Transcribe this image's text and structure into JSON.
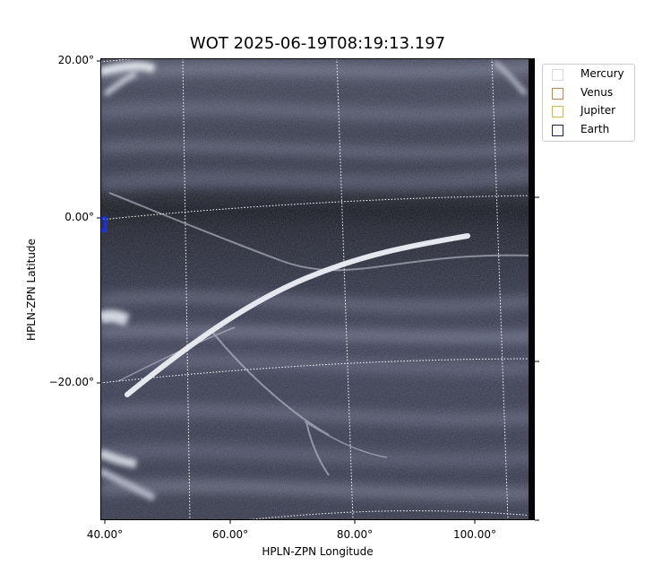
{
  "chart_data": {
    "type": "scatter",
    "title": "WOT 2025-06-19T08:19:13.197",
    "xlabel": "HPLN-ZPN Longitude",
    "ylabel": "HPLN-ZPN Latitude",
    "x_ticks": [
      "40.00°",
      "60.00°",
      "80.00°",
      "100.00°"
    ],
    "y_ticks": [
      "20.00°",
      "0.00°",
      "−20.00°"
    ],
    "xlim": [
      39,
      110
    ],
    "ylim": [
      -36,
      20
    ],
    "grid": true,
    "legend_position": "outside-right",
    "legend": [
      {
        "name": "Mercury",
        "color": "#d9d9d9"
      },
      {
        "name": "Venus",
        "color": "#e07b39"
      },
      {
        "name": "Jupiter",
        "color": "#e8b720"
      },
      {
        "name": "Earth",
        "color": "#1a1a8c"
      }
    ],
    "series": [
      {
        "name": "Earth",
        "marker": "blue-square",
        "points": [
          {
            "x": 39,
            "y": -1.5
          }
        ]
      }
    ],
    "background": "grayscale coronagraph image (heliospheric streamers)"
  },
  "colors": {
    "image_base": "#2e3246",
    "streak": "#e8ecf4",
    "earth_marker": "#1030ff"
  }
}
